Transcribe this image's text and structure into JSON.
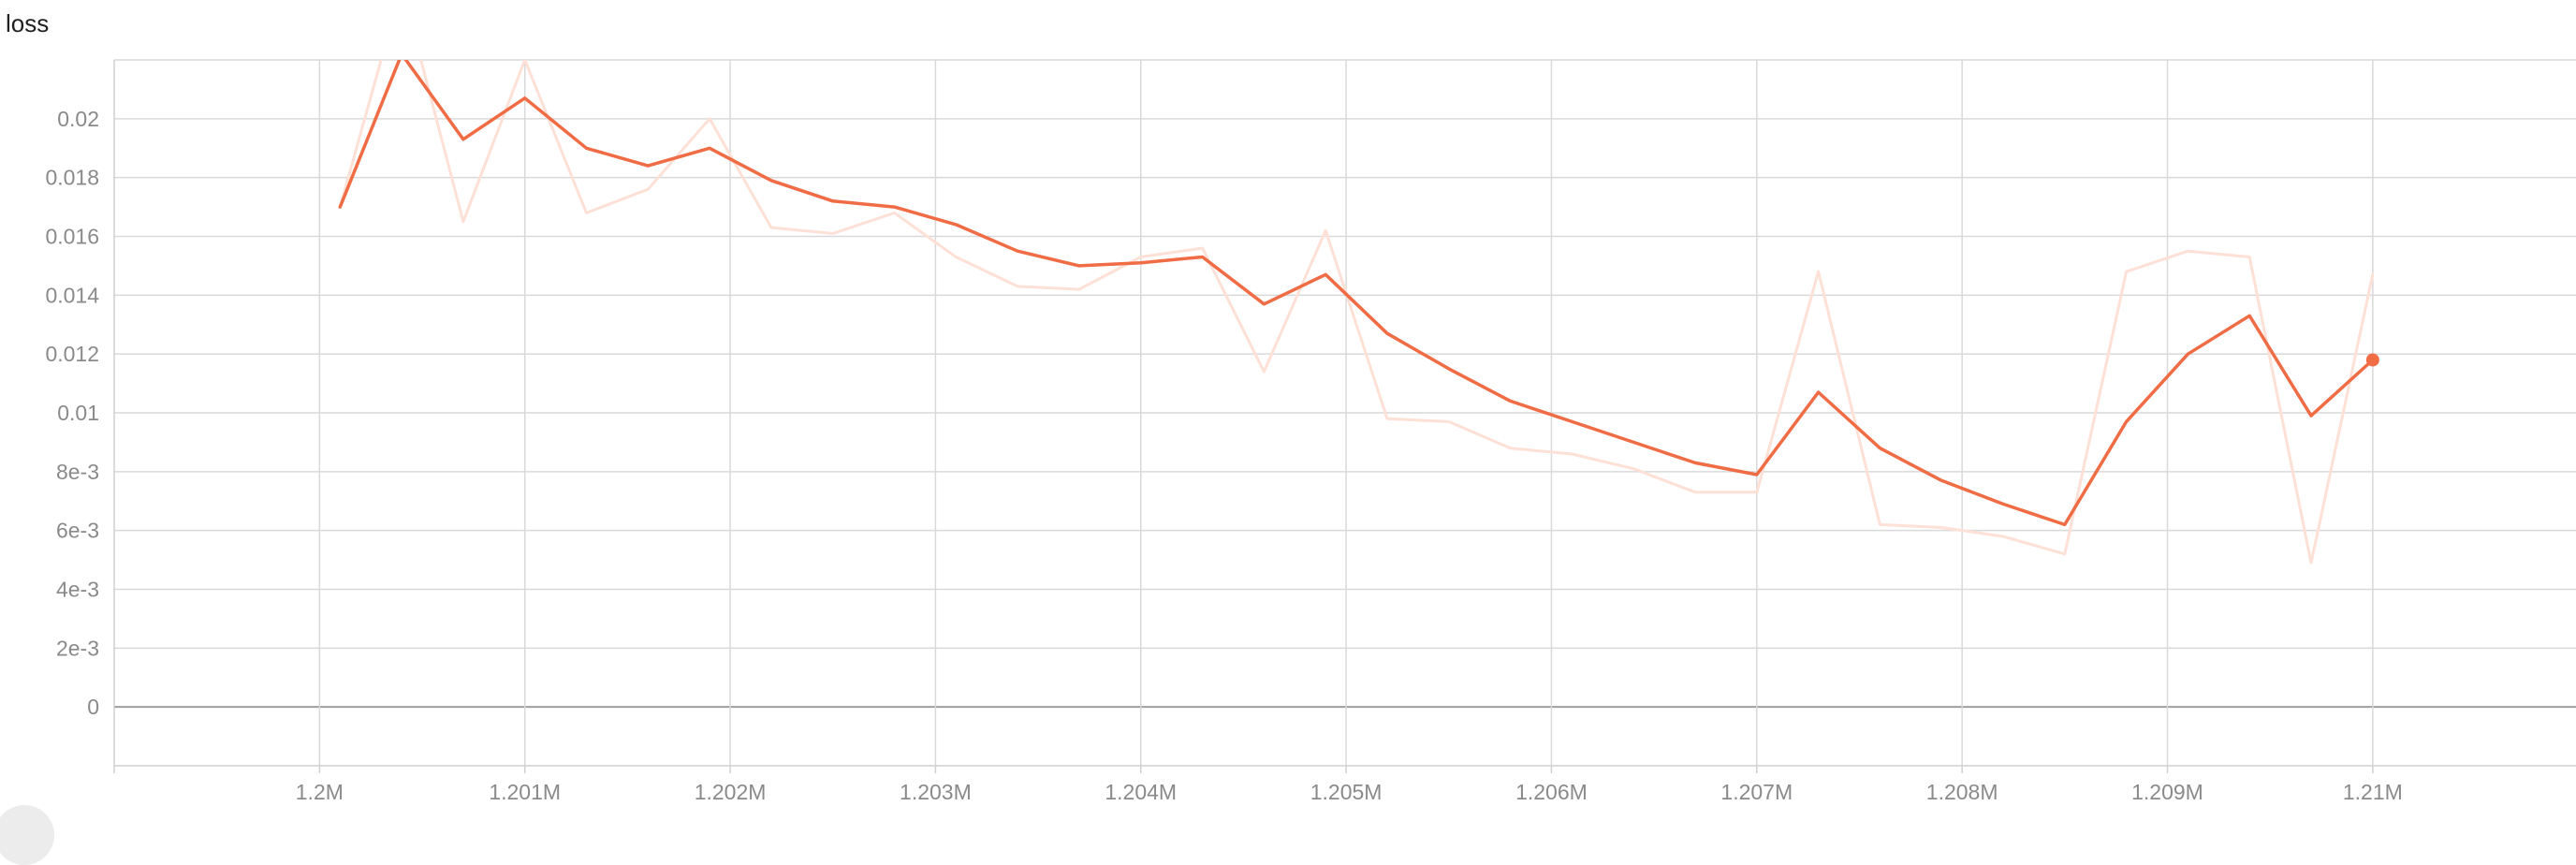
{
  "chart_data": {
    "type": "line",
    "title": "loss",
    "xlabel": "",
    "ylabel": "",
    "xlim": [
      1199000,
      1210990
    ],
    "ylim": [
      -0.002,
      0.022
    ],
    "grid": true,
    "x_ticks": [
      {
        "value": 1200000,
        "label": "1.2M"
      },
      {
        "value": 1201000,
        "label": "1.201M"
      },
      {
        "value": 1202000,
        "label": "1.202M"
      },
      {
        "value": 1203000,
        "label": "1.203M"
      },
      {
        "value": 1204000,
        "label": "1.204M"
      },
      {
        "value": 1205000,
        "label": "1.205M"
      },
      {
        "value": 1206000,
        "label": "1.206M"
      },
      {
        "value": 1207000,
        "label": "1.207M"
      },
      {
        "value": 1208000,
        "label": "1.208M"
      },
      {
        "value": 1209000,
        "label": "1.209M"
      },
      {
        "value": 1210000,
        "label": "1.21M"
      }
    ],
    "y_ticks": [
      {
        "value": 0.02,
        "label": "0.02"
      },
      {
        "value": 0.018,
        "label": "0.018"
      },
      {
        "value": 0.016,
        "label": "0.016"
      },
      {
        "value": 0.014,
        "label": "0.014"
      },
      {
        "value": 0.012,
        "label": "0.012"
      },
      {
        "value": 0.01,
        "label": "0.01"
      },
      {
        "value": 0.008,
        "label": "8e-3"
      },
      {
        "value": 0.006,
        "label": "6e-3"
      },
      {
        "value": 0.004,
        "label": "4e-3"
      },
      {
        "value": 0.002,
        "label": "2e-3"
      },
      {
        "value": 0,
        "label": "0"
      }
    ],
    "x": [
      1200100,
      1200400,
      1200700,
      1201000,
      1201300,
      1201600,
      1201900,
      1202200,
      1202500,
      1202800,
      1203100,
      1203400,
      1203700,
      1204000,
      1204300,
      1204600,
      1204900,
      1205200,
      1205500,
      1205800,
      1206100,
      1206400,
      1206700,
      1207000,
      1207300,
      1207600,
      1207900,
      1208200,
      1208500,
      1208800,
      1209100,
      1209400,
      1209700,
      1210000
    ],
    "series": [
      {
        "role": "raw",
        "color": "#fde0d6",
        "values": [
          0.017,
          0.0245,
          0.0165,
          0.022,
          0.0168,
          0.0176,
          0.02,
          0.0163,
          0.0161,
          0.0168,
          0.0153,
          0.0143,
          0.0142,
          0.0153,
          0.0156,
          0.0114,
          0.0162,
          0.0098,
          0.0097,
          0.0088,
          0.0086,
          0.0081,
          0.0073,
          0.0073,
          0.0148,
          0.0062,
          0.0061,
          0.0058,
          0.0052,
          0.0148,
          0.0155,
          0.0153,
          0.0049,
          0.0147
        ]
      },
      {
        "role": "smoothed",
        "color": "#ef6c45",
        "values": [
          0.017,
          0.0222,
          0.0193,
          0.0207,
          0.019,
          0.0184,
          0.019,
          0.0179,
          0.0172,
          0.017,
          0.0164,
          0.0155,
          0.015,
          0.0151,
          0.0153,
          0.0137,
          0.0147,
          0.0127,
          0.0115,
          0.0104,
          0.0097,
          0.009,
          0.0083,
          0.0079,
          0.0107,
          0.0088,
          0.0077,
          0.0069,
          0.0062,
          0.0097,
          0.012,
          0.0133,
          0.0099,
          0.0118
        ]
      }
    ]
  }
}
